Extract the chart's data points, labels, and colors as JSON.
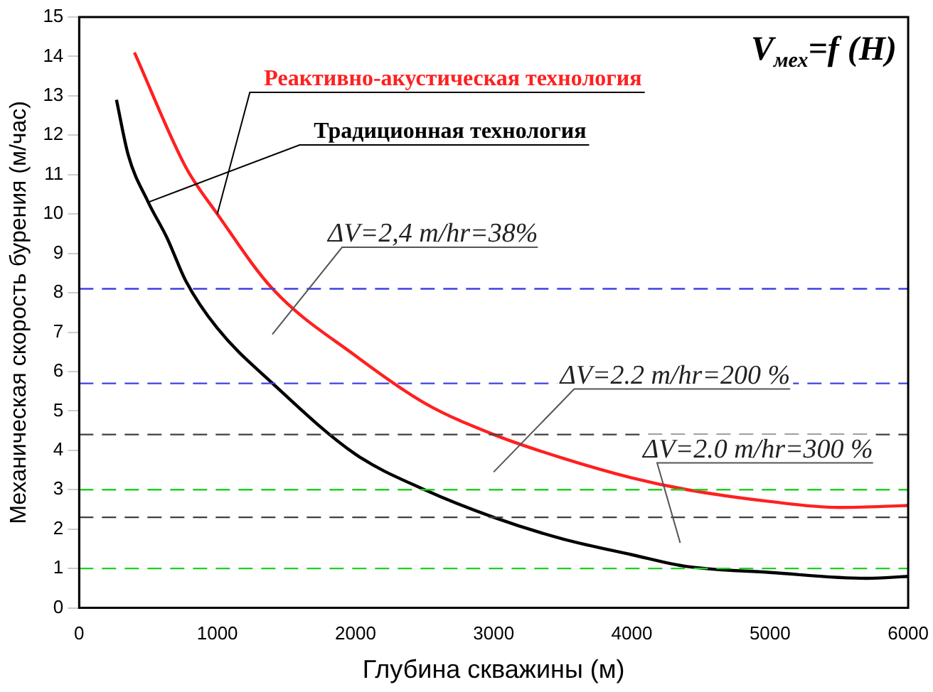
{
  "chart_data": {
    "type": "line",
    "xlabel": "Глубина скважины (м)",
    "ylabel": "Механическая скорость бурения (м/час)",
    "series": [
      {
        "name": "Реактивно-акустическая технология",
        "color": "#ff2020",
        "x": [
          400,
          770,
          1000,
          1400,
          2000,
          2500,
          3000,
          3500,
          4000,
          4400,
          5000,
          5500,
          6000
        ],
        "values": [
          14.1,
          11.2,
          10.0,
          8.1,
          6.4,
          5.2,
          4.4,
          3.8,
          3.3,
          3.0,
          2.7,
          2.55,
          2.6
        ]
      },
      {
        "name": "Традиционная технология",
        "color": "#000000",
        "x": [
          270,
          355,
          500,
          635,
          772,
          1000,
          1400,
          2000,
          2500,
          3000,
          3500,
          4000,
          4400,
          5000,
          5700,
          6000
        ],
        "values": [
          12.9,
          11.5,
          10.3,
          9.4,
          8.3,
          7.1,
          5.7,
          3.9,
          3.0,
          2.3,
          1.75,
          1.35,
          1.05,
          0.9,
          0.75,
          0.8
        ]
      }
    ],
    "xlim": [
      0,
      6000
    ],
    "xticks": [
      0,
      1000,
      2000,
      3000,
      4000,
      5000,
      6000
    ],
    "ylim": [
      0,
      15
    ],
    "yticks": [
      0,
      1,
      2,
      3,
      4,
      5,
      6,
      7,
      8,
      9,
      10,
      11,
      12,
      13,
      14,
      15
    ],
    "grid": false,
    "legend": false,
    "marker": "none",
    "line_style": "solid",
    "ref_lines": [
      {
        "axis": "y",
        "value": 8.1,
        "color": "#4040e0",
        "line_style": "dashed"
      },
      {
        "axis": "y",
        "value": 5.7,
        "color": "#4040e0",
        "line_style": "dashed"
      },
      {
        "axis": "y",
        "value": 4.4,
        "color": "#404040",
        "line_style": "dashed"
      },
      {
        "axis": "y",
        "value": 2.3,
        "color": "#404040",
        "line_style": "dashed"
      },
      {
        "axis": "y",
        "value": 3.0,
        "color": "#20d020",
        "line_style": "dashed"
      },
      {
        "axis": "y",
        "value": 1.0,
        "color": "#20d020",
        "line_style": "dashed"
      }
    ],
    "annotations": [
      "V$_{мех}$=f (H)",
      "ΔV=2,4 m/hr=38%",
      "ΔV=2.2 m/hr=200 %",
      "ΔV=2.0 m/hr=300 %"
    ]
  }
}
